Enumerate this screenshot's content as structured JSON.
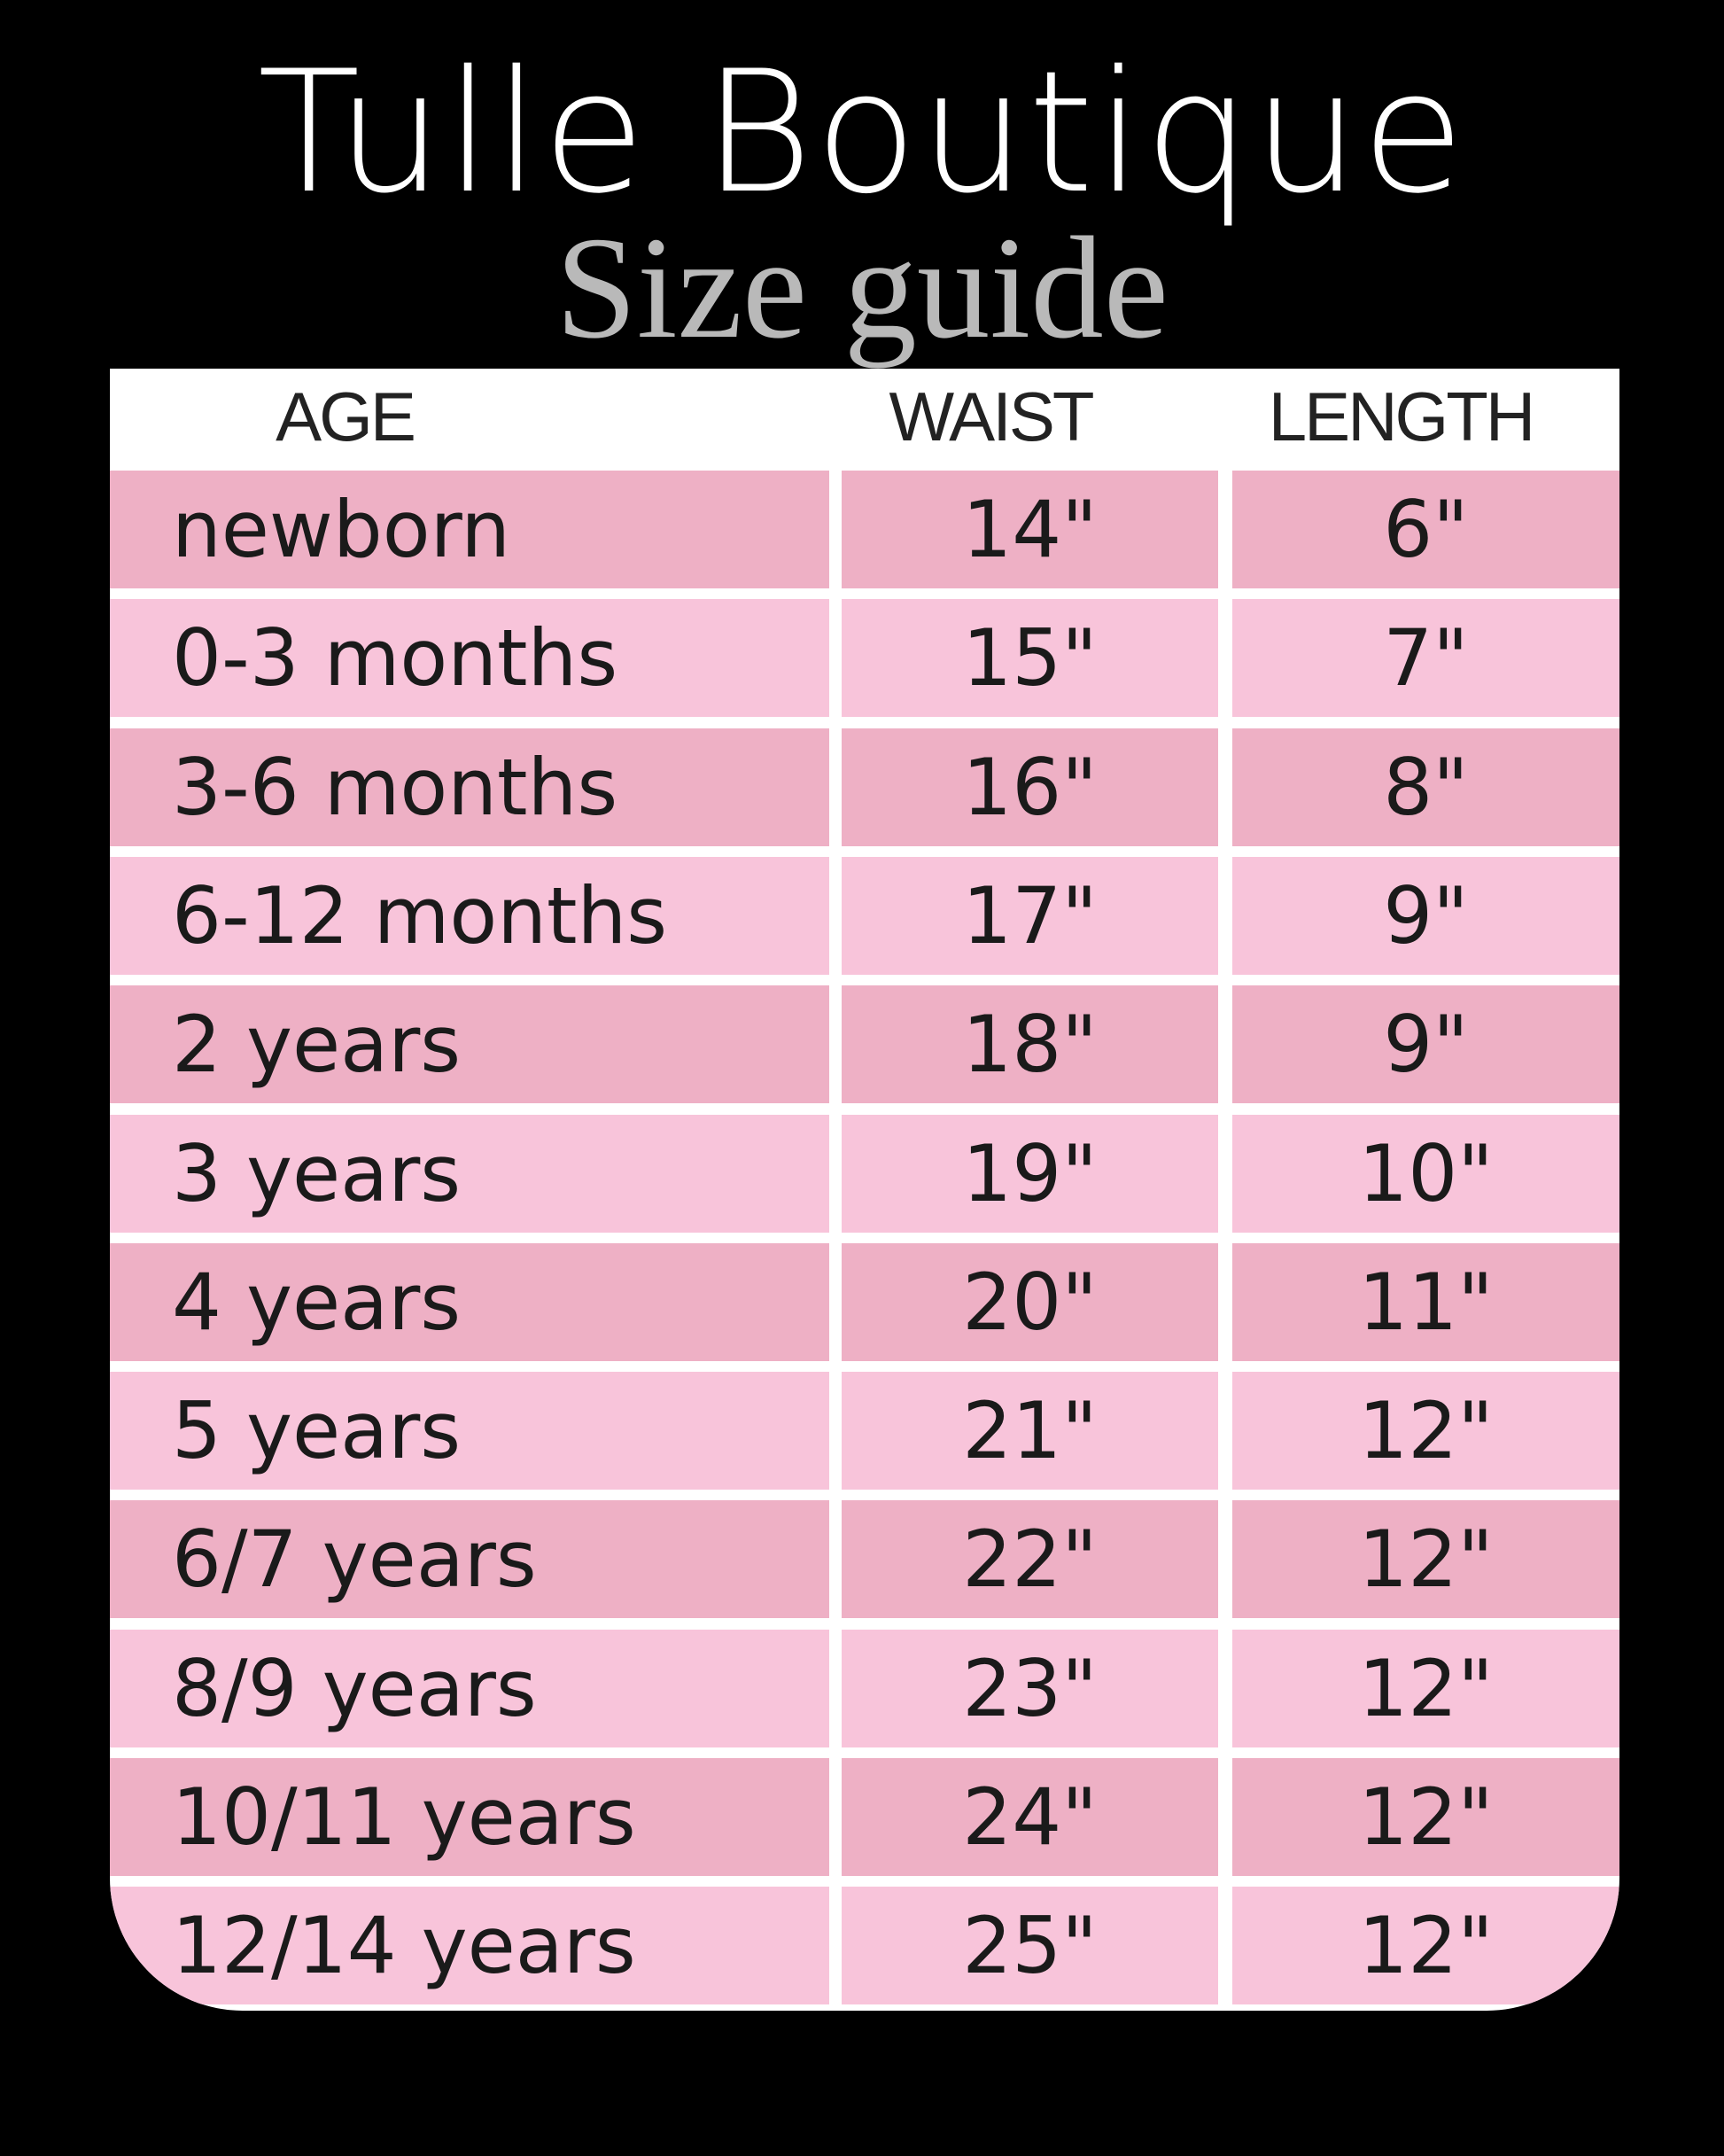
{
  "title": "Tulle Boutique",
  "subtitle": "Size guide",
  "colors": {
    "row_dark": "#eeb0c5",
    "row_light": "#f8c4da",
    "background": "#000000"
  },
  "table": {
    "headers": [
      "AGE",
      "WAIST",
      "LENGTH"
    ],
    "rows": [
      {
        "age": "newborn",
        "waist": "14\"",
        "length": "6\""
      },
      {
        "age": "0-3 months",
        "waist": "15\"",
        "length": "7\""
      },
      {
        "age": "3-6 months",
        "waist": "16\"",
        "length": "8\""
      },
      {
        "age": "6-12 months",
        "waist": "17\"",
        "length": "9\""
      },
      {
        "age": "2 years",
        "waist": "18\"",
        "length": "9\""
      },
      {
        "age": "3 years",
        "waist": "19\"",
        "length": "10\""
      },
      {
        "age": "4 years",
        "waist": "20\"",
        "length": "11\""
      },
      {
        "age": "5 years",
        "waist": "21\"",
        "length": "12\""
      },
      {
        "age": "6/7 years",
        "waist": "22\"",
        "length": "12\""
      },
      {
        "age": "8/9 years",
        "waist": "23\"",
        "length": "12\""
      },
      {
        "age": "10/11 years",
        "waist": "24\"",
        "length": "12\""
      },
      {
        "age": "12/14 years",
        "waist": "25\"",
        "length": "12\""
      }
    ]
  }
}
